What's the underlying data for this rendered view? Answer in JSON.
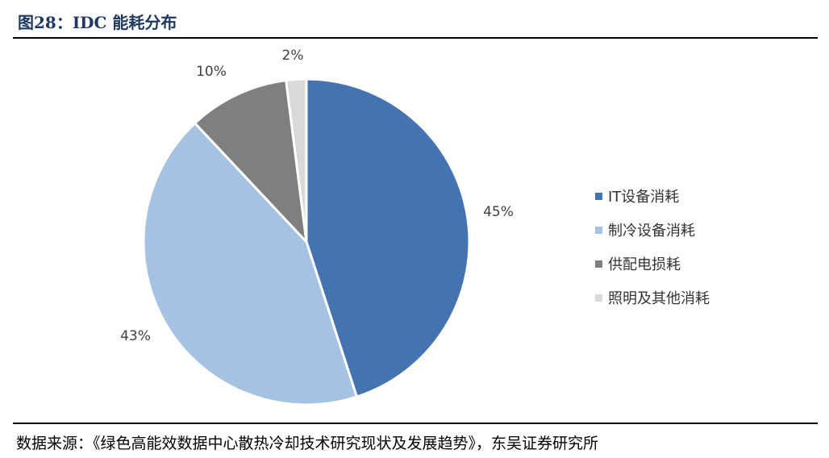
{
  "header": {
    "title": "图28：IDC 能耗分布"
  },
  "source": {
    "text": "数据来源：《绿色高能效数据中心散热冷却技术研究现状及发展趋势》，东吴证券研究所"
  },
  "chart_data": {
    "type": "pie",
    "title": "",
    "legend_position": "right",
    "slices": [
      {
        "label": "IT设备消耗",
        "value": 45,
        "display": "45%",
        "color": "#4373b1"
      },
      {
        "label": "制冷设备消耗",
        "value": 43,
        "display": "43%",
        "color": "#a6c2e2"
      },
      {
        "label": "供配电损耗",
        "value": 10,
        "display": "10%",
        "color": "#7f7f7f"
      },
      {
        "label": "照明及其他消耗",
        "value": 2,
        "display": "2%",
        "color": "#d9d9d9"
      }
    ]
  }
}
